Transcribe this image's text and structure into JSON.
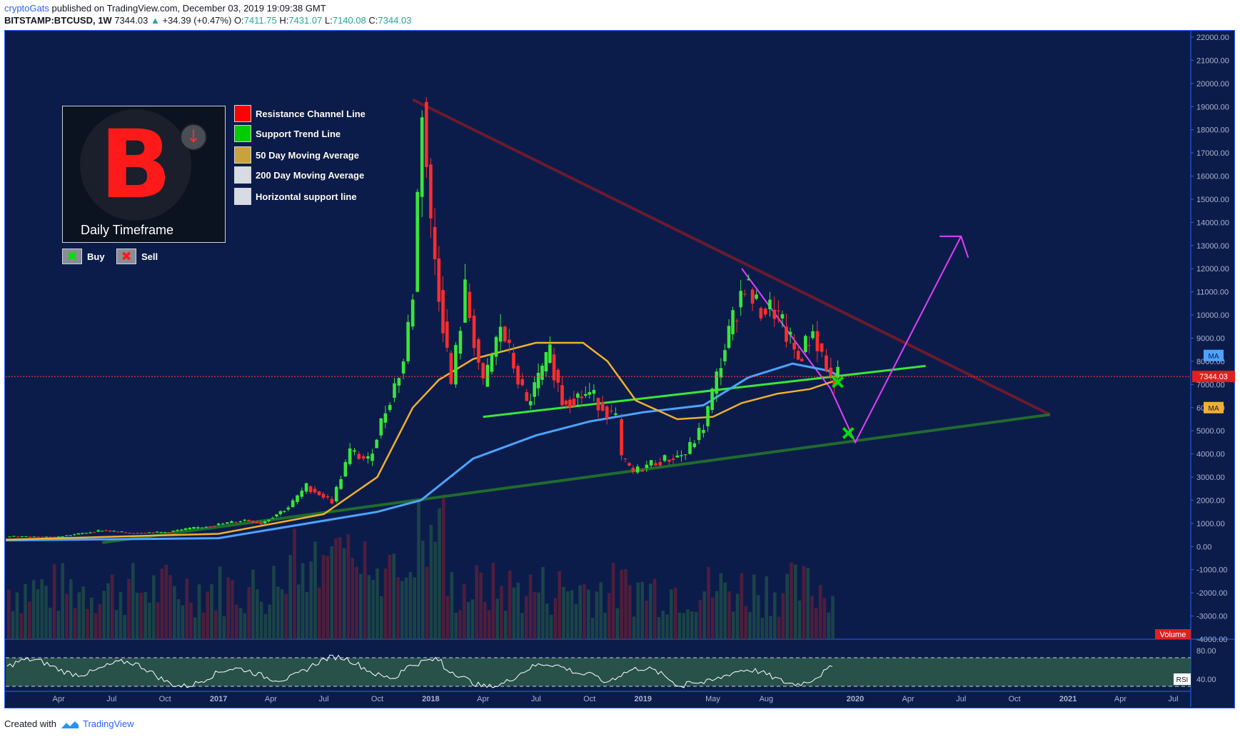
{
  "header": {
    "author": "cryptoGats",
    "published_text": "published on TradingView.com, December 03, 2019 19:09:38 GMT",
    "symbol": "BITSTAMP:BTCUSD, 1W",
    "last": "7344.03",
    "change_arrow": "▲",
    "change": "+34.39 (+0.47%)",
    "o_label": "O:",
    "o": "7411.75",
    "h_label": "H:",
    "h": "7431.07",
    "l_label": "L:",
    "l": "7140.08",
    "c_label": "C:",
    "c": "7344.03"
  },
  "footer": {
    "created_with": "Created with",
    "brand": "TradingView"
  },
  "panel": {
    "title": "Daily Timeframe",
    "logo_letter": "B",
    "badge_icon": "down-arrow-icon"
  },
  "legend": [
    {
      "label": "Resistance Channel Line",
      "color": "#ff0000"
    },
    {
      "label": "Support Trend Line",
      "color": "#00cc00"
    },
    {
      "label": "50 Day Moving Average",
      "color": "#c9a23a"
    },
    {
      "label": "200 Day Moving Average",
      "color": "#d8dbe2"
    },
    {
      "label": "Horizontal support line",
      "color": "#d8dbe2"
    }
  ],
  "signals": {
    "buy_label": "Buy",
    "sell_label": "Sell",
    "buy_color": "#00e000",
    "sell_color": "#ff1a1a"
  },
  "chart_data": {
    "type": "candlestick",
    "symbol": "BITSTAMP:BTCUSD",
    "interval": "1W",
    "ylim": [
      -4000,
      22000
    ],
    "y_ticks": [
      "22000.00",
      "21000.00",
      "20000.00",
      "19000.00",
      "18000.00",
      "17000.00",
      "16000.00",
      "15000.00",
      "14000.00",
      "13000.00",
      "12000.00",
      "11000.00",
      "10000.00",
      "9000.00",
      "8000.00",
      "7000.00",
      "6000.00",
      "5000.00",
      "4000.00",
      "3000.00",
      "2000.00",
      "1000.00",
      "0.00",
      "-1000.00",
      "-2000.00",
      "-3000.00",
      "-4000.00"
    ],
    "x_ticks": [
      "Apr",
      "Jul",
      "Oct",
      "2017",
      "Apr",
      "Jul",
      "Oct",
      "2018",
      "Apr",
      "Jul",
      "Oct",
      "2019",
      "May",
      "Aug",
      "2020",
      "Apr",
      "Jul",
      "Oct",
      "2021",
      "Apr",
      "Jul"
    ],
    "x_range": [
      "2016-01-01",
      "2021-07-31"
    ],
    "last_price_label": "7344.03",
    "ma_labels": [
      "MA",
      "MA"
    ],
    "volume_label": "Volume",
    "rsi": {
      "label": "RSI",
      "ticks": [
        "80.00",
        "40.00"
      ],
      "band": [
        30,
        70
      ],
      "ylim": [
        25,
        92
      ]
    },
    "series": [
      {
        "name": "BTCUSD weekly close",
        "points": [
          [
            "2016-01-01",
            430
          ],
          [
            "2016-04-01",
            420
          ],
          [
            "2016-06-15",
            700
          ],
          [
            "2016-08-01",
            580
          ],
          [
            "2016-10-01",
            620
          ],
          [
            "2017-01-01",
            950
          ],
          [
            "2017-02-15",
            1150
          ],
          [
            "2017-03-15",
            1000
          ],
          [
            "2017-05-01",
            1700
          ],
          [
            "2017-06-01",
            2600
          ],
          [
            "2017-07-15",
            1950
          ],
          [
            "2017-08-15",
            4100
          ],
          [
            "2017-09-15",
            3700
          ],
          [
            "2017-10-15",
            5900
          ],
          [
            "2017-11-15",
            8000
          ],
          [
            "2017-12-01",
            11000
          ],
          [
            "2017-12-17",
            19200
          ],
          [
            "2018-01-01",
            13800
          ],
          [
            "2018-02-05",
            7000
          ],
          [
            "2018-03-01",
            11000
          ],
          [
            "2018-04-01",
            6900
          ],
          [
            "2018-05-01",
            9500
          ],
          [
            "2018-06-15",
            6100
          ],
          [
            "2018-07-25",
            8300
          ],
          [
            "2018-08-15",
            6300
          ],
          [
            "2018-10-01",
            6600
          ],
          [
            "2018-11-15",
            5500
          ],
          [
            "2018-11-25",
            3800
          ],
          [
            "2018-12-15",
            3200
          ],
          [
            "2019-01-15",
            3600
          ],
          [
            "2019-02-15",
            3800
          ],
          [
            "2019-03-15",
            4000
          ],
          [
            "2019-04-15",
            5200
          ],
          [
            "2019-05-15",
            8000
          ],
          [
            "2019-06-25",
            11500
          ],
          [
            "2019-07-15",
            10300
          ],
          [
            "2019-08-15",
            10200
          ],
          [
            "2019-09-25",
            8100
          ],
          [
            "2019-10-20",
            9300
          ],
          [
            "2019-11-20",
            7200
          ],
          [
            "2019-12-02",
            7344
          ]
        ]
      },
      {
        "name": "50 Day Moving Average",
        "points": [
          [
            "2016-01-01",
            300
          ],
          [
            "2017-01-01",
            550
          ],
          [
            "2017-07-01",
            1400
          ],
          [
            "2017-10-01",
            3000
          ],
          [
            "2017-12-01",
            6000
          ],
          [
            "2018-01-15",
            7200
          ],
          [
            "2018-03-15",
            8100
          ],
          [
            "2018-07-01",
            8800
          ],
          [
            "2018-09-20",
            8800
          ],
          [
            "2018-11-01",
            8000
          ],
          [
            "2018-12-20",
            6300
          ],
          [
            "2019-03-01",
            5500
          ],
          [
            "2019-05-01",
            5600
          ],
          [
            "2019-06-20",
            6200
          ],
          [
            "2019-08-20",
            6600
          ],
          [
            "2019-10-15",
            6800
          ],
          [
            "2019-12-02",
            7200
          ]
        ]
      },
      {
        "name": "200 Day Moving Average",
        "points": [
          [
            "2016-01-01",
            270
          ],
          [
            "2017-01-01",
            360
          ],
          [
            "2017-10-01",
            1500
          ],
          [
            "2017-12-15",
            2000
          ],
          [
            "2018-03-15",
            3800
          ],
          [
            "2018-07-01",
            4800
          ],
          [
            "2018-10-01",
            5400
          ],
          [
            "2019-01-01",
            5800
          ],
          [
            "2019-04-15",
            6100
          ],
          [
            "2019-07-01",
            7300
          ],
          [
            "2019-09-15",
            7900
          ],
          [
            "2019-11-15",
            7600
          ],
          [
            "2019-12-02",
            7400
          ]
        ]
      }
    ],
    "drawings": [
      {
        "name": "Resistance Channel Line",
        "points": [
          [
            "2017-12-01",
            19300
          ],
          [
            "2020-12-01",
            5700
          ]
        ]
      },
      {
        "name": "Support Trend Line",
        "points": [
          [
            "2016-06-15",
            170
          ],
          [
            "2020-12-01",
            5700
          ]
        ]
      },
      {
        "name": "Horizontal support line",
        "points": [
          [
            "2018-04-01",
            5600
          ],
          [
            "2020-05-01",
            7800
          ]
        ]
      },
      {
        "name": "projection path",
        "points": [
          [
            "2019-06-20",
            12000
          ],
          [
            "2019-10-15",
            8000
          ],
          [
            "2019-11-20",
            6800
          ],
          [
            "2020-01-01",
            4500
          ],
          [
            "2020-07-01",
            13400
          ]
        ]
      }
    ],
    "signals": [
      {
        "type": "Buy",
        "date": "2019-12-02",
        "price": 7100
      },
      {
        "type": "Sell",
        "date": "2019-12-20",
        "price": 4900
      }
    ]
  }
}
